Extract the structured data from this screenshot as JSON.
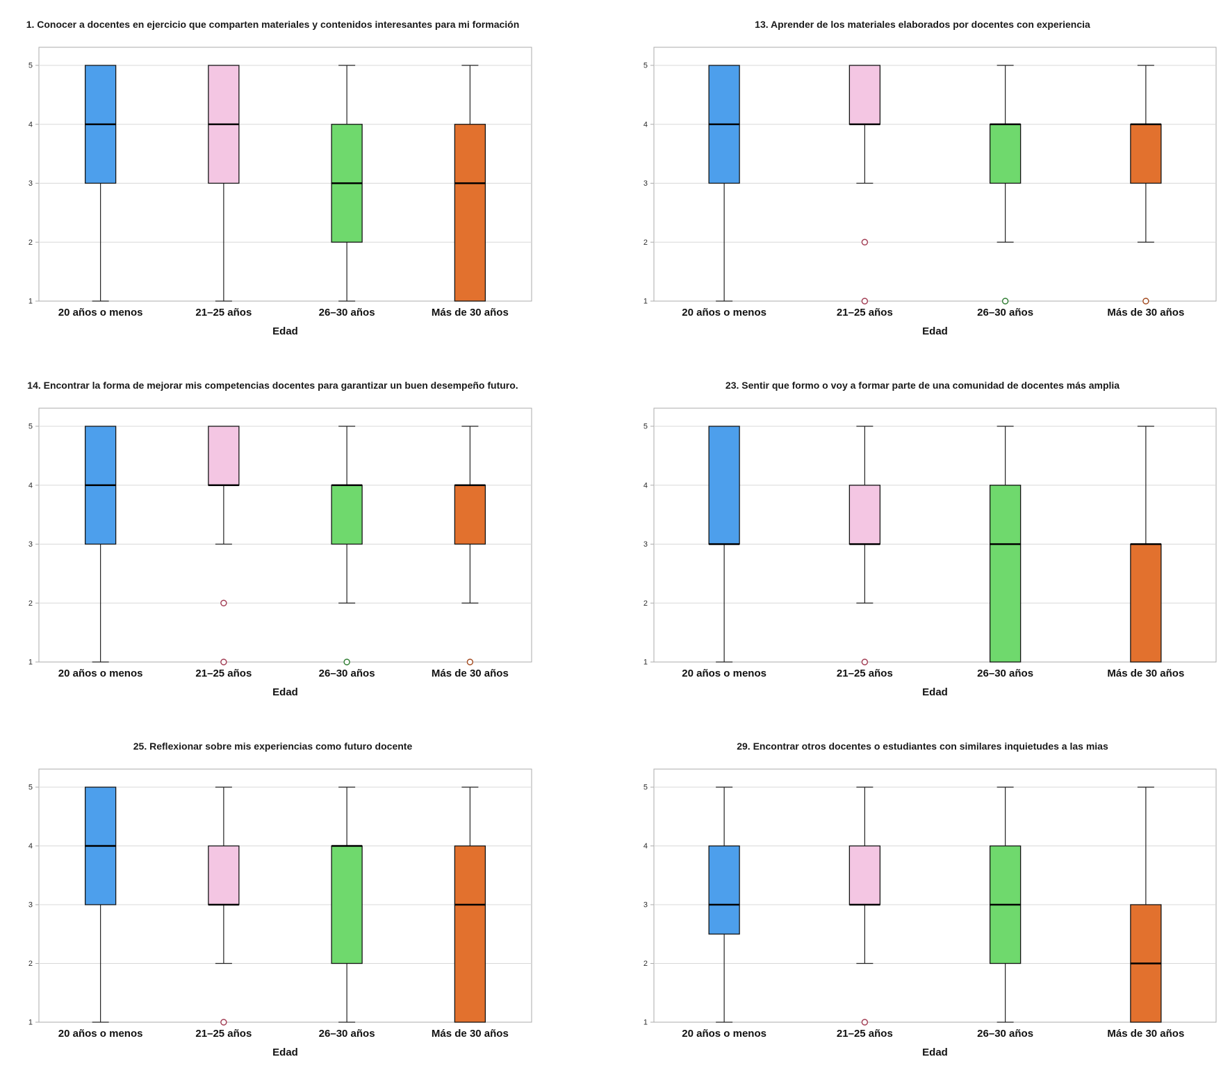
{
  "palette": {
    "box_fills": [
      "#4d9fec",
      "#f4c6e3",
      "#6fd96d",
      "#e2712e"
    ],
    "outlier_strokes": [
      "#27598f",
      "#a13b52",
      "#2f7d32",
      "#a34a1f"
    ],
    "box_stroke": "#141414",
    "median_color": "#000000",
    "whisker_color": "#222222",
    "grid_color": "#d8d8d8",
    "frame_color": "#ababab",
    "tick_text_color": "#2b2b2b",
    "label_text_color": "#111111"
  },
  "chart_data": [
    {
      "type": "boxplot",
      "title": "1. Conocer a docentes en ejercicio que comparten materiales y contenidos interesantes para mi formación",
      "xlabel": "Edad",
      "ylim": [
        1,
        5
      ],
      "yticks": [
        1,
        2,
        3,
        4,
        5
      ],
      "categories": [
        "20 años o menos",
        "21–25 años",
        "26–30 años",
        "Más de 30 años"
      ],
      "boxes": [
        {
          "category": "20 años o menos",
          "whisker_low": 1,
          "q1": 3,
          "median": 4,
          "q3": 5,
          "whisker_high": 5,
          "outliers": []
        },
        {
          "category": "21–25 años",
          "whisker_low": 1,
          "q1": 3,
          "median": 4,
          "q3": 5,
          "whisker_high": 5,
          "outliers": []
        },
        {
          "category": "26–30 años",
          "whisker_low": 1,
          "q1": 2,
          "median": 3,
          "q3": 4,
          "whisker_high": 5,
          "outliers": []
        },
        {
          "category": "Más de 30 años",
          "whisker_low": 1,
          "q1": 1,
          "median": 3,
          "q3": 4,
          "whisker_high": 5,
          "outliers": []
        }
      ]
    },
    {
      "type": "boxplot",
      "title": "13. Aprender de los materiales elaborados por docentes con experiencia",
      "xlabel": "Edad",
      "ylim": [
        1,
        5
      ],
      "yticks": [
        1,
        2,
        3,
        4,
        5
      ],
      "categories": [
        "20 años o menos",
        "21–25 años",
        "26–30 años",
        "Más de 30 años"
      ],
      "boxes": [
        {
          "category": "20 años o menos",
          "whisker_low": 1,
          "q1": 3,
          "median": 4,
          "q3": 5,
          "whisker_high": 5,
          "outliers": []
        },
        {
          "category": "21–25 años",
          "whisker_low": 3,
          "q1": 4,
          "median": 4,
          "q3": 5,
          "whisker_high": 5,
          "outliers": [
            2,
            1
          ]
        },
        {
          "category": "26–30 años",
          "whisker_low": 2,
          "q1": 3,
          "median": 4,
          "q3": 4,
          "whisker_high": 5,
          "outliers": [
            1
          ]
        },
        {
          "category": "Más de 30 años",
          "whisker_low": 2,
          "q1": 3,
          "median": 4,
          "q3": 4,
          "whisker_high": 5,
          "outliers": [
            1
          ]
        }
      ]
    },
    {
      "type": "boxplot",
      "title": "14. Encontrar la forma de mejorar mis competencias docentes para garantizar un buen desempeño futuro.",
      "xlabel": "Edad",
      "ylim": [
        1,
        5
      ],
      "yticks": [
        1,
        2,
        3,
        4,
        5
      ],
      "categories": [
        "20 años o menos",
        "21–25 años",
        "26–30 años",
        "Más de 30 años"
      ],
      "boxes": [
        {
          "category": "20 años o menos",
          "whisker_low": 1,
          "q1": 3,
          "median": 4,
          "q3": 5,
          "whisker_high": 5,
          "outliers": []
        },
        {
          "category": "21–25 años",
          "whisker_low": 3,
          "q1": 4,
          "median": 4,
          "q3": 5,
          "whisker_high": 5,
          "outliers": [
            2,
            1
          ]
        },
        {
          "category": "26–30 años",
          "whisker_low": 2,
          "q1": 3,
          "median": 4,
          "q3": 4,
          "whisker_high": 5,
          "outliers": [
            1
          ]
        },
        {
          "category": "Más de 30 años",
          "whisker_low": 2,
          "q1": 3,
          "median": 4,
          "q3": 4,
          "whisker_high": 5,
          "outliers": [
            1
          ]
        }
      ]
    },
    {
      "type": "boxplot",
      "title": "23. Sentir que formo o voy a formar parte de una comunidad de docentes más amplia",
      "xlabel": "Edad",
      "ylim": [
        1,
        5
      ],
      "yticks": [
        1,
        2,
        3,
        4,
        5
      ],
      "categories": [
        "20 años o menos",
        "21–25 años",
        "26–30 años",
        "Más de 30 años"
      ],
      "boxes": [
        {
          "category": "20 años o menos",
          "whisker_low": 1,
          "q1": 3,
          "median": 3,
          "q3": 5,
          "whisker_high": 5,
          "outliers": []
        },
        {
          "category": "21–25 años",
          "whisker_low": 2,
          "q1": 3,
          "median": 3,
          "q3": 4,
          "whisker_high": 5,
          "outliers": [
            1
          ]
        },
        {
          "category": "26–30 años",
          "whisker_low": 1,
          "q1": 1,
          "median": 3,
          "q3": 4,
          "whisker_high": 5,
          "outliers": []
        },
        {
          "category": "Más de 30 años",
          "whisker_low": 1,
          "q1": 1,
          "median": 3,
          "q3": 3,
          "whisker_high": 5,
          "outliers": []
        }
      ]
    },
    {
      "type": "boxplot",
      "title": "25. Reflexionar sobre mis experiencias como futuro docente",
      "xlabel": "Edad",
      "ylim": [
        1,
        5
      ],
      "yticks": [
        1,
        2,
        3,
        4,
        5
      ],
      "categories": [
        "20 años o menos",
        "21–25 años",
        "26–30 años",
        "Más de 30 años"
      ],
      "boxes": [
        {
          "category": "20 años o menos",
          "whisker_low": 1,
          "q1": 3,
          "median": 4,
          "q3": 5,
          "whisker_high": 5,
          "outliers": []
        },
        {
          "category": "21–25 años",
          "whisker_low": 2,
          "q1": 3,
          "median": 3,
          "q3": 4,
          "whisker_high": 5,
          "outliers": [
            1
          ]
        },
        {
          "category": "26–30 años",
          "whisker_low": 1,
          "q1": 2,
          "median": 4,
          "q3": 4,
          "whisker_high": 5,
          "outliers": []
        },
        {
          "category": "Más de 30 años",
          "whisker_low": 1,
          "q1": 1,
          "median": 3,
          "q3": 4,
          "whisker_high": 5,
          "outliers": []
        }
      ]
    },
    {
      "type": "boxplot",
      "title": "29. Encontrar otros docentes o estudiantes con similares inquietudes a las mias",
      "xlabel": "Edad",
      "ylim": [
        1,
        5
      ],
      "yticks": [
        1,
        2,
        3,
        4,
        5
      ],
      "categories": [
        "20 años o menos",
        "21–25 años",
        "26–30 años",
        "Más de 30 años"
      ],
      "boxes": [
        {
          "category": "20 años o menos",
          "whisker_low": 1,
          "q1": 2.5,
          "median": 3,
          "q3": 4,
          "whisker_high": 5,
          "outliers": []
        },
        {
          "category": "21–25 años",
          "whisker_low": 2,
          "q1": 3,
          "median": 3,
          "q3": 4,
          "whisker_high": 5,
          "outliers": [
            1
          ]
        },
        {
          "category": "26–30 años",
          "whisker_low": 1,
          "q1": 2,
          "median": 3,
          "q3": 4,
          "whisker_high": 5,
          "outliers": []
        },
        {
          "category": "Más de 30 años",
          "whisker_low": 1,
          "q1": 1,
          "median": 2,
          "q3": 3,
          "whisker_high": 5,
          "outliers": []
        }
      ]
    }
  ]
}
